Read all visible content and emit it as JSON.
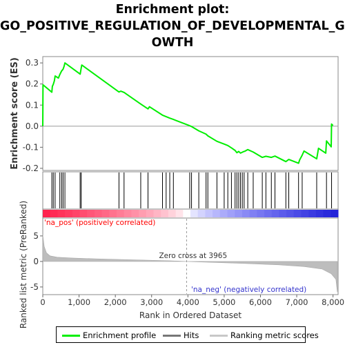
{
  "chart_data": {
    "type": "line",
    "title_lines": [
      "Enrichment plot:",
      "GO_POSITIVE_REGULATION_OF_DEVELOPMENTAL_GR",
      "OWTH"
    ],
    "es_panel": {
      "ylabel": "Enrichment score (ES)",
      "ylim": [
        -0.21,
        0.33
      ],
      "yticks": [
        -0.2,
        -0.1,
        0.0,
        0.1,
        0.2,
        0.3
      ],
      "ytick_labels": [
        "-0.2",
        "-0.1",
        "0.0",
        "0.1",
        "0.2",
        "0.3"
      ],
      "series_name": "Enrichment profile",
      "color": "#00ee00",
      "points": [
        [
          0,
          0.0
        ],
        [
          5,
          0.196
        ],
        [
          250,
          0.161
        ],
        [
          265,
          0.189
        ],
        [
          290,
          0.198
        ],
        [
          320,
          0.215
        ],
        [
          340,
          0.238
        ],
        [
          430,
          0.228
        ],
        [
          470,
          0.245
        ],
        [
          520,
          0.262
        ],
        [
          560,
          0.27
        ],
        [
          585,
          0.283
        ],
        [
          610,
          0.3
        ],
        [
          1030,
          0.247
        ],
        [
          1060,
          0.276
        ],
        [
          1075,
          0.29
        ],
        [
          2100,
          0.162
        ],
        [
          2150,
          0.166
        ],
        [
          2240,
          0.16
        ],
        [
          2700,
          0.105
        ],
        [
          2900,
          0.082
        ],
        [
          2940,
          0.092
        ],
        [
          3300,
          0.052
        ],
        [
          3400,
          0.045
        ],
        [
          3500,
          0.038
        ],
        [
          3600,
          0.032
        ],
        [
          4050,
          0.002
        ],
        [
          4100,
          -0.002
        ],
        [
          4300,
          -0.022
        ],
        [
          4500,
          -0.038
        ],
        [
          4550,
          -0.046
        ],
        [
          4800,
          -0.072
        ],
        [
          5000,
          -0.085
        ],
        [
          5100,
          -0.092
        ],
        [
          5200,
          -0.103
        ],
        [
          5300,
          -0.115
        ],
        [
          5350,
          -0.126
        ],
        [
          5400,
          -0.12
        ],
        [
          5450,
          -0.128
        ],
        [
          5520,
          -0.122
        ],
        [
          5580,
          -0.118
        ],
        [
          5650,
          -0.111
        ],
        [
          5800,
          -0.123
        ],
        [
          6050,
          -0.148
        ],
        [
          6150,
          -0.143
        ],
        [
          6300,
          -0.148
        ],
        [
          6400,
          -0.142
        ],
        [
          6700,
          -0.168
        ],
        [
          6780,
          -0.158
        ],
        [
          7050,
          -0.176
        ],
        [
          7080,
          -0.16
        ],
        [
          7150,
          -0.138
        ],
        [
          7200,
          -0.118
        ],
        [
          7550,
          -0.155
        ],
        [
          7600,
          -0.105
        ],
        [
          7800,
          -0.128
        ],
        [
          7820,
          -0.07
        ],
        [
          7950,
          -0.098
        ],
        [
          7960,
          0.01
        ],
        [
          8000,
          0.003
        ]
      ]
    },
    "hits": [
      250,
      290,
      340,
      470,
      520,
      560,
      610,
      1030,
      1060,
      2100,
      2240,
      2700,
      2900,
      3300,
      3400,
      3500,
      3600,
      4050,
      4100,
      4300,
      4500,
      4550,
      4800,
      5000,
      5100,
      5200,
      5300,
      5350,
      5400,
      5450,
      5500,
      5550,
      5650,
      5800,
      6050,
      6150,
      6300,
      6400,
      6700,
      6780,
      7050,
      7150,
      7550,
      7820,
      7960
    ],
    "ranked_panel": {
      "ylabel": "Ranked list metric (PreRanked)",
      "ylim": [
        -6.5,
        8.5
      ],
      "yticks": [
        -5,
        0,
        5
      ],
      "ytick_labels": [
        "-5",
        "0",
        "5"
      ],
      "pos_label": "'na_pos' (positively correlated)",
      "neg_label": "'na_neg' (negatively correlated)",
      "zero_cross_label": "Zero cross at 3965",
      "zero_cross": 3965,
      "metric_points": [
        [
          0,
          5.2
        ],
        [
          40,
          2.9
        ],
        [
          100,
          1.7
        ],
        [
          200,
          1.1
        ],
        [
          400,
          0.82
        ],
        [
          800,
          0.67
        ],
        [
          1500,
          0.5
        ],
        [
          2500,
          0.32
        ],
        [
          3500,
          0.13
        ],
        [
          3965,
          0.0
        ],
        [
          4500,
          -0.14
        ],
        [
          5500,
          -0.38
        ],
        [
          6500,
          -0.66
        ],
        [
          7200,
          -1.0
        ],
        [
          7700,
          -1.5
        ],
        [
          7950,
          -2.4
        ],
        [
          8080,
          -3.5
        ],
        [
          8120,
          -6.0
        ]
      ]
    },
    "xlabel": "Rank in Ordered Dataset",
    "xlim": [
      0,
      8140
    ],
    "xticks": [
      0,
      1000,
      2000,
      3000,
      4000,
      5000,
      6000,
      7000,
      8000
    ],
    "xtick_labels": [
      "0",
      "1,000",
      "2,000",
      "3,000",
      "4,000",
      "5,000",
      "6,000",
      "7,000",
      "8,000"
    ],
    "legend": [
      {
        "label": "Enrichment profile",
        "color": "#00ee00"
      },
      {
        "label": "Hits",
        "color": "#777777"
      },
      {
        "label": "Ranking metric scores",
        "color": "#c8c8c8"
      }
    ]
  }
}
